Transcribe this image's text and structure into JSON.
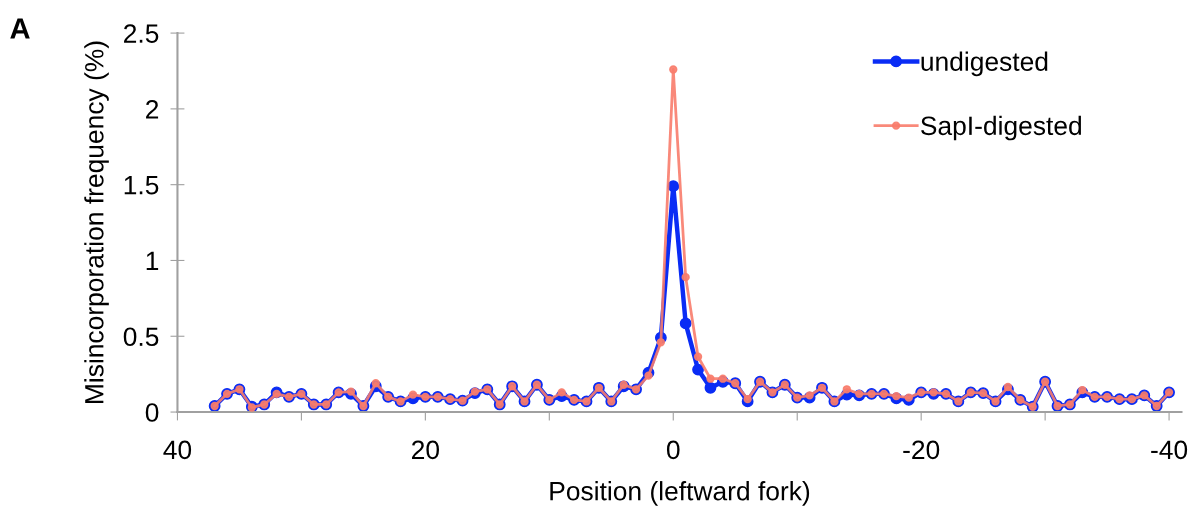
{
  "chart_data": {
    "type": "line",
    "xlabel": "Position (leftward fork)",
    "ylabel": "Misincorporation frequency (%)",
    "annotations": [
      "A"
    ],
    "x": [
      37,
      36,
      35,
      34,
      33,
      32,
      31,
      30,
      29,
      28,
      27,
      26,
      25,
      24,
      23,
      22,
      21,
      20,
      19,
      18,
      17,
      16,
      15,
      14,
      13,
      12,
      11,
      10,
      9,
      8,
      7,
      6,
      5,
      4,
      3,
      2,
      1,
      0,
      -1,
      -2,
      -3,
      -4,
      -5,
      -6,
      -7,
      -8,
      -9,
      -10,
      -11,
      -12,
      -13,
      -14,
      -15,
      -16,
      -17,
      -18,
      -19,
      -20,
      -21,
      -22,
      -23,
      -24,
      -25,
      -26,
      -27,
      -28,
      -29,
      -30,
      -31,
      -32,
      -33,
      -34,
      -35,
      -36,
      -37,
      -38,
      -39,
      -40
    ],
    "series": [
      {
        "name": "undigested",
        "color": "#0a2cf5",
        "values": [
          0.04,
          0.12,
          0.15,
          0.035,
          0.05,
          0.13,
          0.1,
          0.12,
          0.05,
          0.05,
          0.13,
          0.12,
          0.04,
          0.17,
          0.1,
          0.07,
          0.09,
          0.1,
          0.1,
          0.085,
          0.075,
          0.125,
          0.15,
          0.05,
          0.17,
          0.07,
          0.18,
          0.08,
          0.105,
          0.08,
          0.07,
          0.16,
          0.07,
          0.17,
          0.15,
          0.26,
          0.49,
          1.49,
          0.585,
          0.28,
          0.16,
          0.2,
          0.19,
          0.07,
          0.2,
          0.13,
          0.18,
          0.095,
          0.095,
          0.16,
          0.07,
          0.115,
          0.11,
          0.12,
          0.12,
          0.09,
          0.08,
          0.13,
          0.12,
          0.12,
          0.07,
          0.13,
          0.125,
          0.07,
          0.15,
          0.08,
          0.035,
          0.2,
          0.04,
          0.05,
          0.13,
          0.1,
          0.1,
          0.085,
          0.085,
          0.11,
          0.04,
          0.13
        ]
      },
      {
        "name": "SapI-digested",
        "color": "#f87c6c",
        "values": [
          0.04,
          0.12,
          0.15,
          0.03,
          0.05,
          0.12,
          0.1,
          0.12,
          0.05,
          0.05,
          0.13,
          0.135,
          0.04,
          0.19,
          0.1,
          0.07,
          0.115,
          0.1,
          0.1,
          0.085,
          0.075,
          0.135,
          0.15,
          0.05,
          0.17,
          0.07,
          0.18,
          0.08,
          0.13,
          0.08,
          0.07,
          0.16,
          0.07,
          0.18,
          0.15,
          0.24,
          0.46,
          2.26,
          0.89,
          0.365,
          0.22,
          0.22,
          0.19,
          0.085,
          0.2,
          0.13,
          0.18,
          0.095,
          0.11,
          0.16,
          0.07,
          0.15,
          0.12,
          0.12,
          0.12,
          0.105,
          0.095,
          0.13,
          0.13,
          0.12,
          0.07,
          0.13,
          0.125,
          0.07,
          0.165,
          0.08,
          0.035,
          0.2,
          0.04,
          0.05,
          0.145,
          0.1,
          0.1,
          0.085,
          0.085,
          0.11,
          0.04,
          0.13
        ]
      }
    ],
    "xlim": [
      40,
      -41
    ],
    "xticks": [
      40,
      {
        "value": 30,
        "label": null
      },
      20,
      {
        "value": 10,
        "label": null
      },
      0,
      {
        "value": -10,
        "label": null
      },
      -20,
      {
        "value": -30,
        "label": null
      },
      -40
    ],
    "ylim": [
      0,
      2.5
    ],
    "yticks": [
      0,
      0.5,
      1,
      1.5,
      2,
      2.5
    ],
    "grid": false,
    "legend": "top right",
    "marker": "circle",
    "line_style": "solid"
  }
}
